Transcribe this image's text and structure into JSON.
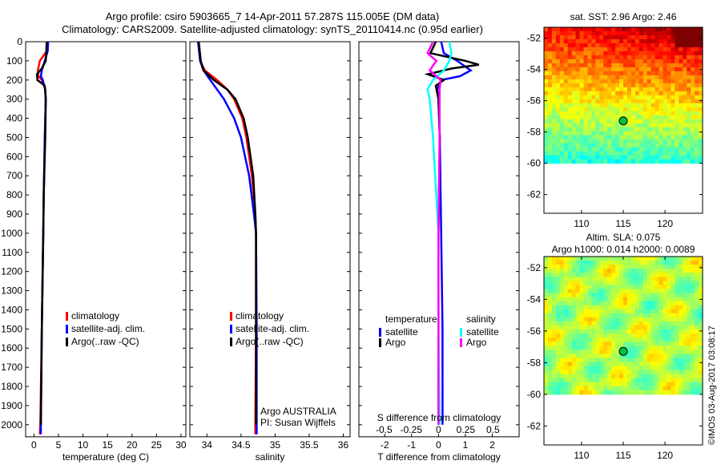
{
  "title": {
    "line1": "Argo profile: csiro 5903665_7 14-Apr-2011 57.287S 115.005E (DM data)",
    "line2": "Climatology: CARS2009. Satellite-adjusted climatology: synTS_20110414.nc (0.95d earlier)"
  },
  "credit": "©IMOS 03-Aug-2017 03:08:17",
  "colors": {
    "climatology": "#ff0000",
    "satellite": "#0000ff",
    "argo": "#000000",
    "sal_satellite": "#00ffff",
    "sal_argo": "#ff00ff"
  },
  "chart_data": [
    {
      "type": "line",
      "id": "temperature",
      "xlabel": "temperature (deg C)",
      "ylabel": "",
      "xlim": [
        -1.7,
        31
      ],
      "ylim": [
        2063,
        0
      ],
      "xticks": [
        0,
        5,
        10,
        15,
        20,
        25,
        30
      ],
      "yticks": [
        0,
        100,
        200,
        300,
        400,
        500,
        600,
        700,
        800,
        900,
        1000,
        1100,
        1200,
        1300,
        1400,
        1500,
        1600,
        1700,
        1800,
        1900,
        2000
      ],
      "legend": [
        "climatology",
        "satellite-adj. clim.",
        "Argo(..raw -QC)"
      ],
      "legend_position": "bottom-center",
      "series": [
        {
          "name": "climatology",
          "color": "#ff0000",
          "depth": [
            0,
            50,
            100,
            150,
            180,
            200,
            250,
            300,
            500,
            800,
            1000,
            1500,
            2000,
            2050
          ],
          "values": [
            2.7,
            2.6,
            1.2,
            0.8,
            0.9,
            1.6,
            2.3,
            2.4,
            2.2,
            2.0,
            1.9,
            1.6,
            1.3,
            1.2
          ]
        },
        {
          "name": "satellite-adj. clim.",
          "color": "#0000ff",
          "depth": [
            0,
            50,
            100,
            150,
            180,
            200,
            250,
            300,
            500,
            800,
            1000,
            1500,
            2000,
            2050
          ],
          "values": [
            2.9,
            2.8,
            2.2,
            1.6,
            1.4,
            1.8,
            2.3,
            2.4,
            2.2,
            2.0,
            1.9,
            1.6,
            1.4,
            1.4
          ]
        },
        {
          "name": "Argo(..raw -QC)",
          "color": "#000000",
          "depth": [
            0,
            60,
            100,
            140,
            170,
            200,
            230,
            300,
            500,
            800,
            1000,
            1500,
            2000
          ],
          "values": [
            2.6,
            2.5,
            2.4,
            1.6,
            0.6,
            0.7,
            2.2,
            2.4,
            2.3,
            2.0,
            1.9,
            1.6,
            1.4
          ]
        }
      ]
    },
    {
      "type": "line",
      "id": "salinity",
      "xlabel": "salinity",
      "xlim": [
        33.75,
        36.1
      ],
      "ylim": [
        2063,
        0
      ],
      "xticks": [
        34,
        34.5,
        35,
        35.5,
        36
      ],
      "legend": [
        "climatology",
        "satellite-adj. clim.",
        "Argo(..raw -QC)"
      ],
      "legend_position": "bottom-center",
      "annotation": [
        "Argo AUSTRALIA",
        "PI: Susan Wijffels"
      ],
      "series": [
        {
          "name": "climatology",
          "color": "#ff0000",
          "depth": [
            0,
            100,
            150,
            200,
            250,
            300,
            400,
            500,
            700,
            900,
            1000,
            1500,
            2000,
            2050
          ],
          "values": [
            33.88,
            33.9,
            33.97,
            34.15,
            34.3,
            34.4,
            34.52,
            34.58,
            34.66,
            34.71,
            34.72,
            34.72,
            34.71,
            34.71
          ]
        },
        {
          "name": "satellite-adj. clim.",
          "color": "#0000ff",
          "depth": [
            0,
            100,
            150,
            200,
            250,
            300,
            400,
            500,
            700,
            900,
            1000,
            1500,
            2000,
            2050
          ],
          "values": [
            33.87,
            33.9,
            33.95,
            34.05,
            34.15,
            34.25,
            34.4,
            34.5,
            34.62,
            34.69,
            34.72,
            34.73,
            34.73,
            34.73
          ]
        },
        {
          "name": "Argo(..raw -QC)",
          "color": "#000000",
          "depth": [
            0,
            100,
            150,
            200,
            250,
            300,
            400,
            500,
            700,
            900,
            1000,
            1500,
            2000
          ],
          "values": [
            33.88,
            33.91,
            33.95,
            34.1,
            34.3,
            34.42,
            34.54,
            34.6,
            34.68,
            34.71,
            34.72,
            34.72,
            34.72
          ]
        }
      ]
    },
    {
      "type": "line",
      "id": "difference",
      "xlabel": "T difference from climatology",
      "xlabel_top": "S difference from climatology",
      "xlim": [
        -2.96,
        3.0
      ],
      "ylim": [
        2063,
        0
      ],
      "xticks": [
        -2,
        -1,
        0,
        1,
        2
      ],
      "xticks_top": [
        -0.5,
        -0.25,
        0,
        0.25,
        0.5
      ],
      "legend_titles": [
        "temperature",
        "salinity"
      ],
      "legend": [
        "satellite",
        "Argo",
        "satellite",
        "Argo"
      ],
      "legend_position": "bottom-center",
      "series": [
        {
          "name": "temperature satellite",
          "axis": "T",
          "color": "#0000ff",
          "depth": [
            0,
            60,
            100,
            130,
            150,
            180,
            200,
            250,
            300,
            500,
            1000,
            1500,
            2000
          ],
          "values": [
            0.1,
            0.2,
            0.7,
            1.0,
            1.2,
            0.8,
            0.1,
            -0.05,
            0,
            0.05,
            0.1,
            0.15,
            0.15
          ]
        },
        {
          "name": "temperature Argo",
          "axis": "T",
          "color": "#000000",
          "depth": [
            0,
            60,
            100,
            120,
            140,
            170,
            200,
            230,
            300,
            500,
            1000,
            1500,
            2000
          ],
          "values": [
            -0.1,
            -0.3,
            1.0,
            1.5,
            0.5,
            -0.4,
            0.2,
            -0.1,
            0,
            0.05,
            0.0,
            0.0,
            0.0
          ]
        },
        {
          "name": "salinity satellite",
          "axis": "S",
          "color": "#00ffff",
          "depth": [
            0,
            60,
            100,
            150,
            200,
            250,
            300,
            500,
            800,
            1000,
            1500,
            2000
          ],
          "values": [
            0.1,
            0.12,
            0.1,
            0.05,
            -0.05,
            -0.1,
            -0.08,
            -0.05,
            -0.02,
            0,
            0,
            0.01
          ]
        },
        {
          "name": "salinity Argo",
          "axis": "S",
          "color": "#ff00ff",
          "depth": [
            0,
            60,
            100,
            150,
            200,
            250,
            300,
            500,
            1000,
            1500,
            2000
          ],
          "values": [
            -0.05,
            -0.1,
            -0.02,
            -0.08,
            0.02,
            0.01,
            0.01,
            0.01,
            0,
            0,
            0
          ]
        }
      ]
    },
    {
      "type": "heatmap",
      "id": "sst-map",
      "title": "sat. SST: 2.96 Argo: 2.46",
      "xlim": [
        105.5,
        124.5
      ],
      "ylim": [
        -63.2,
        -51.3
      ],
      "xticks": [
        110,
        115,
        120
      ],
      "yticks": [
        -52,
        -54,
        -56,
        -58,
        -60,
        -62
      ],
      "ytick_labels": [
        "-52",
        "-54",
        "-56",
        "-58",
        "-60",
        "-62"
      ],
      "data_extent_lat": [
        -60,
        -51.3
      ],
      "argo_position": {
        "lon": 115.005,
        "lat": -57.287
      }
    },
    {
      "type": "heatmap",
      "id": "sla-map",
      "title": [
        "Altim. SLA: 0.075",
        "Argo h1000: 0.014 h2000: 0.0089"
      ],
      "xlim": [
        105.5,
        124.5
      ],
      "ylim": [
        -63.2,
        -51.3
      ],
      "xticks": [
        110,
        115,
        120
      ],
      "yticks": [
        -52,
        -54,
        -56,
        -58,
        -60,
        -62
      ],
      "ytick_labels": [
        "-52",
        "-54",
        "-56",
        "-58",
        "-60",
        "-62"
      ],
      "data_extent_lat": [
        -60,
        -51.3
      ],
      "argo_position": {
        "lon": 115.005,
        "lat": -57.287
      }
    }
  ]
}
